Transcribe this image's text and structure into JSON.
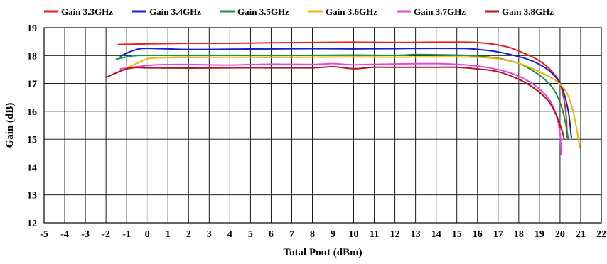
{
  "chart_data": {
    "type": "line",
    "xlabel": "Total Pout (dBm)",
    "ylabel": "Gain (dB)",
    "xlim": [
      -5,
      22
    ],
    "ylim": [
      12,
      19
    ],
    "x_ticks": [
      -5,
      -4,
      -3,
      -2,
      -1,
      0,
      1,
      2,
      3,
      4,
      5,
      6,
      7,
      8,
      9,
      10,
      11,
      12,
      13,
      14,
      15,
      16,
      17,
      18,
      19,
      20,
      21,
      22
    ],
    "y_ticks": [
      12,
      13,
      14,
      15,
      16,
      17,
      18,
      19
    ],
    "grid": true,
    "legend_position": "top",
    "series": [
      {
        "name": "Gain 3.3GHz",
        "color": "#e8201f",
        "points": [
          [
            -1.4,
            18.4
          ],
          [
            0,
            18.42
          ],
          [
            2,
            18.44
          ],
          [
            4,
            18.44
          ],
          [
            6,
            18.46
          ],
          [
            8,
            18.47
          ],
          [
            10,
            18.48
          ],
          [
            12,
            18.47
          ],
          [
            14,
            18.48
          ],
          [
            15.5,
            18.48
          ],
          [
            16.3,
            18.45
          ],
          [
            17,
            18.38
          ],
          [
            17.6,
            18.28
          ],
          [
            18.2,
            18.1
          ],
          [
            18.8,
            17.9
          ],
          [
            19.3,
            17.65
          ],
          [
            19.7,
            17.35
          ],
          [
            20.0,
            17.0
          ],
          [
            20.2,
            16.4
          ],
          [
            20.3,
            15.8
          ],
          [
            20.35,
            15.05
          ]
        ]
      },
      {
        "name": "Gain 3.4GHz",
        "color": "#1520d0",
        "points": [
          [
            -1.3,
            17.98
          ],
          [
            -0.8,
            18.15
          ],
          [
            -0.3,
            18.25
          ],
          [
            0.5,
            18.25
          ],
          [
            2,
            18.22
          ],
          [
            4,
            18.23
          ],
          [
            6,
            18.24
          ],
          [
            8,
            18.25
          ],
          [
            10,
            18.24
          ],
          [
            12,
            18.25
          ],
          [
            14,
            18.26
          ],
          [
            15.5,
            18.25
          ],
          [
            16.3,
            18.2
          ],
          [
            17,
            18.13
          ],
          [
            17.8,
            18.0
          ],
          [
            18.5,
            17.85
          ],
          [
            19.2,
            17.6
          ],
          [
            19.7,
            17.3
          ],
          [
            20.1,
            16.85
          ],
          [
            20.4,
            16.0
          ],
          [
            20.55,
            15.05
          ]
        ]
      },
      {
        "name": "Gain 3.5GHz",
        "color": "#0a9a4a",
        "points": [
          [
            -1.5,
            17.87
          ],
          [
            -1.0,
            17.95
          ],
          [
            -0.5,
            18.0
          ],
          [
            0.5,
            18.01
          ],
          [
            2,
            18.0
          ],
          [
            4,
            18.01
          ],
          [
            6,
            18.0
          ],
          [
            8,
            18.01
          ],
          [
            10,
            18.02
          ],
          [
            12,
            18.01
          ],
          [
            13,
            18.04
          ],
          [
            14,
            18.03
          ],
          [
            15,
            18.02
          ],
          [
            16,
            17.98
          ],
          [
            17,
            17.9
          ],
          [
            18,
            17.72
          ],
          [
            18.8,
            17.4
          ],
          [
            19.4,
            17.05
          ],
          [
            19.8,
            16.65
          ],
          [
            20.1,
            16.1
          ],
          [
            20.3,
            15.45
          ],
          [
            20.4,
            15.0
          ]
        ]
      },
      {
        "name": "Gain 3.6GHz",
        "color": "#f3b400",
        "points": [
          [
            -1.0,
            17.55
          ],
          [
            -0.5,
            17.72
          ],
          [
            0,
            17.88
          ],
          [
            0.5,
            17.92
          ],
          [
            2,
            17.93
          ],
          [
            4,
            17.94
          ],
          [
            6,
            17.93
          ],
          [
            8,
            17.94
          ],
          [
            10,
            17.95
          ],
          [
            12,
            17.94
          ],
          [
            14,
            17.95
          ],
          [
            16,
            17.94
          ],
          [
            17,
            17.88
          ],
          [
            18,
            17.72
          ],
          [
            19,
            17.42
          ],
          [
            19.8,
            17.1
          ],
          [
            20.3,
            16.7
          ],
          [
            20.6,
            16.1
          ],
          [
            20.8,
            15.4
          ],
          [
            20.95,
            14.7
          ]
        ]
      },
      {
        "name": "Gain 3.7GHz",
        "color": "#e545e0",
        "points": [
          [
            -1.3,
            17.52
          ],
          [
            -0.5,
            17.6
          ],
          [
            0.5,
            17.67
          ],
          [
            2,
            17.68
          ],
          [
            4,
            17.66
          ],
          [
            6,
            17.69
          ],
          [
            8,
            17.68
          ],
          [
            9,
            17.71
          ],
          [
            10,
            17.67
          ],
          [
            12,
            17.7
          ],
          [
            14,
            17.71
          ],
          [
            15.5,
            17.66
          ],
          [
            16.5,
            17.57
          ],
          [
            17.5,
            17.4
          ],
          [
            18.3,
            17.15
          ],
          [
            19,
            16.8
          ],
          [
            19.5,
            16.4
          ],
          [
            19.8,
            15.9
          ],
          [
            20.0,
            15.2
          ],
          [
            20.05,
            14.45
          ]
        ]
      },
      {
        "name": "Gain 3.8GHz",
        "color": "#b1181b",
        "points": [
          [
            -2.0,
            17.22
          ],
          [
            -1.5,
            17.38
          ],
          [
            -1.0,
            17.52
          ],
          [
            -0.5,
            17.57
          ],
          [
            0,
            17.56
          ],
          [
            2,
            17.55
          ],
          [
            4,
            17.56
          ],
          [
            6,
            17.56
          ],
          [
            8,
            17.56
          ],
          [
            9,
            17.6
          ],
          [
            10,
            17.53
          ],
          [
            11,
            17.58
          ],
          [
            12,
            17.58
          ],
          [
            14,
            17.58
          ],
          [
            15,
            17.58
          ],
          [
            16,
            17.52
          ],
          [
            17,
            17.42
          ],
          [
            18,
            17.15
          ],
          [
            18.8,
            16.8
          ],
          [
            19.4,
            16.4
          ],
          [
            19.8,
            15.9
          ],
          [
            20.1,
            15.3
          ],
          [
            20.2,
            15.0
          ]
        ]
      }
    ]
  }
}
